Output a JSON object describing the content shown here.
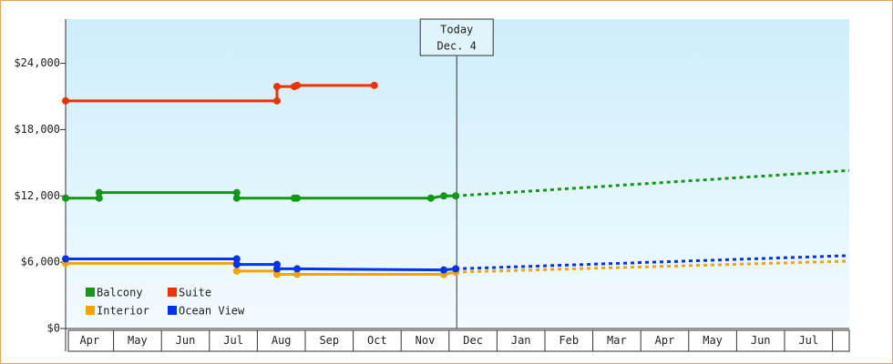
{
  "chart_data": {
    "type": "line",
    "xticks": [
      {
        "value": 0.5,
        "label": "Apr"
      },
      {
        "value": 1.5,
        "label": "May"
      },
      {
        "value": 2.5,
        "label": "Jun"
      },
      {
        "value": 3.5,
        "label": "Jul"
      },
      {
        "value": 4.5,
        "label": "Aug"
      },
      {
        "value": 5.5,
        "label": "Sep"
      },
      {
        "value": 6.5,
        "label": "Oct"
      },
      {
        "value": 7.5,
        "label": "Nov"
      },
      {
        "value": 8.5,
        "label": "Dec"
      },
      {
        "value": 9.5,
        "label": "Jan"
      },
      {
        "value": 10.5,
        "label": "Feb"
      },
      {
        "value": 11.5,
        "label": "Mar"
      },
      {
        "value": 12.5,
        "label": "Apr"
      },
      {
        "value": 13.5,
        "label": "May"
      },
      {
        "value": 14.5,
        "label": "Jun"
      },
      {
        "value": 15.5,
        "label": "Jul"
      }
    ],
    "xlim": [
      0,
      16.35
    ],
    "ylim": [
      0,
      28000
    ],
    "yticks": [
      {
        "value": 0,
        "label": "$0"
      },
      {
        "value": 6000,
        "label": "$6,000"
      },
      {
        "value": 12000,
        "label": "$12,000"
      },
      {
        "value": 18000,
        "label": "$18,000"
      },
      {
        "value": 24000,
        "label": "$24,000"
      }
    ],
    "annotation": {
      "x": 8.16,
      "lines": [
        "Today",
        "Dec. 4"
      ]
    },
    "series": [
      {
        "name": "Balcony",
        "color": "#119911",
        "x": [
          0,
          0.7,
          0.7,
          3.57,
          3.57,
          4.77,
          4.83,
          7.62,
          7.89,
          8.14
        ],
        "values": [
          11800,
          11800,
          12300,
          12300,
          11800,
          11800,
          11800,
          11800,
          12000,
          12000
        ],
        "forecast": {
          "x": [
            8.14,
            16.35
          ],
          "values": [
            12000,
            14300
          ]
        }
      },
      {
        "name": "Suite",
        "color": "#ee3300",
        "x": [
          0,
          4.41,
          4.41,
          4.77,
          4.83,
          6.44
        ],
        "values": [
          20600,
          20600,
          21900,
          21900,
          22000,
          22000
        ]
      },
      {
        "name": "Interior",
        "color": "#f5a300",
        "x": [
          0,
          3.57,
          3.57,
          4.41,
          4.41,
          4.83,
          7.89,
          8.14
        ],
        "values": [
          5900,
          5900,
          5200,
          5200,
          4900,
          4900,
          4900,
          5100
        ],
        "forecast": {
          "x": [
            8.14,
            16.35
          ],
          "values": [
            5100,
            6100
          ]
        }
      },
      {
        "name": "Ocean View",
        "color": "#0033ee",
        "x": [
          0,
          3.57,
          3.57,
          4.41,
          4.41,
          4.83,
          7.89,
          8.14
        ],
        "values": [
          6300,
          6300,
          5800,
          5800,
          5400,
          5400,
          5300,
          5400
        ],
        "forecast": {
          "x": [
            8.14,
            16.35
          ],
          "values": [
            5400,
            6600
          ]
        }
      }
    ],
    "legend": "lower-left"
  }
}
